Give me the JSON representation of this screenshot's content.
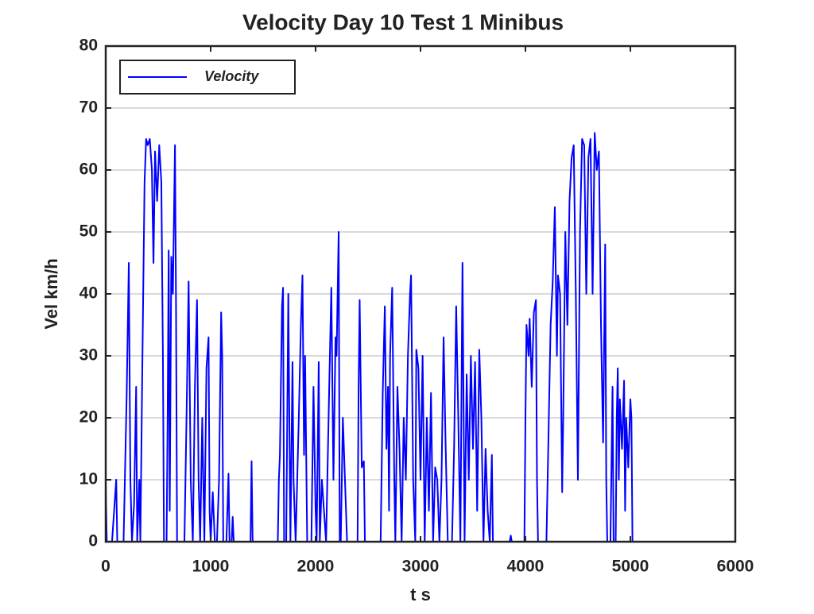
{
  "chart_data": {
    "type": "line",
    "title": "Velocity Day 10 Test 1 Minibus",
    "xlabel": "t s",
    "ylabel": "Vel km/h",
    "xlim": [
      0,
      6000
    ],
    "xticks": [
      0,
      1000,
      2000,
      3000,
      4000,
      5000,
      6000
    ],
    "ylim": [
      0,
      80
    ],
    "yticks": [
      0,
      10,
      20,
      30,
      40,
      50,
      60,
      70,
      80
    ],
    "grid": true,
    "legend": "upper left",
    "series": [
      {
        "name": "Velocity",
        "color": "#0000ff",
        "x": [
          0,
          10,
          60,
          100,
          110,
          170,
          200,
          220,
          235,
          250,
          270,
          290,
          300,
          320,
          330,
          350,
          370,
          385,
          400,
          420,
          440,
          455,
          470,
          490,
          510,
          530,
          545,
          555,
          580,
          590,
          600,
          610,
          625,
          640,
          660,
          670,
          680,
          720,
          750,
          770,
          790,
          810,
          830,
          850,
          870,
          885,
          900,
          920,
          940,
          960,
          980,
          990,
          1000,
          1020,
          1040,
          1060,
          1080,
          1100,
          1110,
          1120,
          1150,
          1170,
          1180,
          1200,
          1210,
          1220,
          1380,
          1390,
          1400,
          1640,
          1650,
          1660,
          1680,
          1690,
          1700,
          1720,
          1740,
          1750,
          1760,
          1780,
          1790,
          1810,
          1840,
          1860,
          1875,
          1890,
          1900,
          1920,
          1960,
          1980,
          2000,
          2010,
          2030,
          2040,
          2060,
          2080,
          2100,
          2130,
          2150,
          2170,
          2190,
          2200,
          2220,
          2230,
          2240,
          2260,
          2280,
          2300,
          2400,
          2410,
          2420,
          2440,
          2460,
          2470,
          2620,
          2640,
          2660,
          2675,
          2690,
          2700,
          2710,
          2730,
          2750,
          2760,
          2780,
          2800,
          2820,
          2840,
          2860,
          2880,
          2900,
          2910,
          2930,
          2950,
          2960,
          2980,
          3000,
          3020,
          3040,
          3060,
          3080,
          3100,
          3120,
          3140,
          3160,
          3180,
          3200,
          3220,
          3240,
          3260,
          3300,
          3320,
          3340,
          3360,
          3380,
          3400,
          3420,
          3440,
          3460,
          3480,
          3500,
          3520,
          3540,
          3560,
          3580,
          3600,
          3620,
          3640,
          3660,
          3680,
          3690,
          3850,
          3860,
          3870,
          3990,
          4000,
          4010,
          4030,
          4040,
          4060,
          4080,
          4100,
          4110,
          4120,
          4200,
          4240,
          4260,
          4280,
          4300,
          4310,
          4330,
          4350,
          4360,
          4380,
          4400,
          4420,
          4440,
          4460,
          4480,
          4500,
          4520,
          4540,
          4560,
          4580,
          4600,
          4620,
          4640,
          4660,
          4680,
          4700,
          4720,
          4740,
          4760,
          4770,
          4780,
          4810,
          4830,
          4840,
          4860,
          4870,
          4880,
          4890,
          4900,
          4920,
          4940,
          4950,
          4960,
          4980,
          5000,
          5010,
          5020,
          5060
        ],
        "values": [
          9,
          0,
          0,
          10,
          0,
          0,
          24,
          45,
          10,
          0,
          6,
          25,
          0,
          10,
          0,
          30,
          58,
          65,
          64,
          65,
          60,
          45,
          63,
          55,
          64,
          58,
          30,
          0,
          0,
          20,
          47,
          5,
          46,
          40,
          64,
          38,
          0,
          0,
          0,
          20,
          42,
          10,
          0,
          25,
          39,
          10,
          0,
          20,
          0,
          28,
          33,
          5,
          0,
          8,
          0,
          0,
          10,
          37,
          30,
          0,
          0,
          11,
          0,
          0,
          4,
          0,
          0,
          13,
          0,
          0,
          10,
          14,
          38,
          41,
          0,
          0,
          40,
          20,
          0,
          29,
          10,
          0,
          20,
          35,
          43,
          14,
          30,
          0,
          0,
          25,
          5,
          0,
          29,
          0,
          10,
          5,
          0,
          25,
          41,
          10,
          33,
          30,
          50,
          0,
          0,
          20,
          10,
          0,
          0,
          25,
          39,
          12,
          13,
          0,
          0,
          24,
          38,
          15,
          25,
          5,
          30,
          41,
          10,
          0,
          25,
          15,
          0,
          20,
          10,
          30,
          40,
          43,
          10,
          0,
          31,
          28,
          10,
          30,
          0,
          20,
          5,
          24,
          0,
          12,
          10,
          0,
          10,
          33,
          15,
          0,
          0,
          15,
          38,
          20,
          0,
          45,
          0,
          27,
          10,
          30,
          15,
          29,
          5,
          31,
          20,
          0,
          15,
          5,
          0,
          14,
          0,
          0,
          1,
          0,
          0,
          20,
          35,
          30,
          36,
          25,
          37,
          39,
          10,
          0,
          0,
          35,
          42,
          54,
          30,
          43,
          40,
          8,
          20,
          50,
          35,
          55,
          62,
          64,
          40,
          10,
          50,
          65,
          64,
          40,
          62,
          65,
          40,
          66,
          60,
          63,
          35,
          16,
          48,
          10,
          0,
          0,
          25,
          0,
          0,
          20,
          28,
          10,
          23,
          15,
          26,
          5,
          20,
          12,
          23,
          20,
          0,
          0
        ]
      }
    ]
  }
}
